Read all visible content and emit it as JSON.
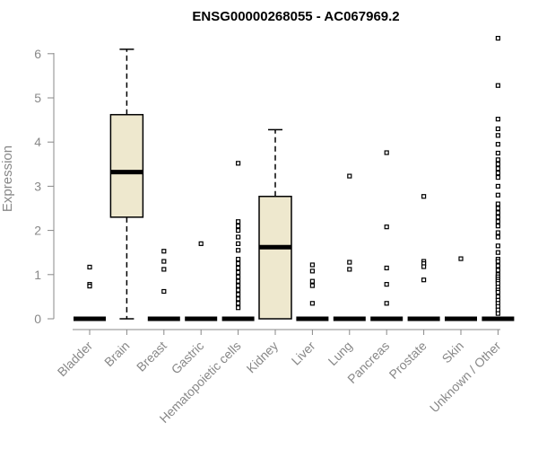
{
  "chart_data": {
    "type": "box",
    "title": "ENSG00000268055 - AC067969.2",
    "ylabel": "Expression",
    "xlabel": "",
    "ylim": [
      0,
      6.3
    ],
    "yticks": [
      0,
      1,
      2,
      3,
      4,
      5,
      6
    ],
    "box_color": "#EEE8CE",
    "categories": [
      "Bladder",
      "Brain",
      "Breast",
      "Gastric",
      "Hematopoietic cells",
      "Kidney",
      "Liver",
      "Lung",
      "Pancreas",
      "Prostate",
      "Skin",
      "Unknown / Other"
    ],
    "boxes": [
      {
        "q1": 0,
        "median": 0,
        "q3": 0,
        "whisker_low": 0,
        "whisker_high": 0,
        "outliers": [
          1.17,
          0.78,
          0.74
        ]
      },
      {
        "q1": 2.3,
        "median": 3.32,
        "q3": 4.62,
        "whisker_low": 0,
        "whisker_high": 6.1,
        "outliers": []
      },
      {
        "q1": 0,
        "median": 0,
        "q3": 0,
        "whisker_low": 0,
        "whisker_high": 0,
        "outliers": [
          1.53,
          1.3,
          1.12,
          0.62
        ]
      },
      {
        "q1": 0,
        "median": 0,
        "q3": 0,
        "whisker_low": 0,
        "whisker_high": 0,
        "outliers": [
          1.7
        ]
      },
      {
        "q1": 0,
        "median": 0,
        "q3": 0,
        "whisker_low": 0,
        "whisker_high": 0,
        "outliers": [
          3.52,
          2.2,
          2.1,
          2.0,
          1.85,
          1.7,
          1.55,
          1.35,
          1.25,
          1.15,
          1.05,
          0.95,
          0.85,
          0.75,
          0.65,
          0.55,
          0.45,
          0.35,
          0.25
        ]
      },
      {
        "q1": 0,
        "median": 1.62,
        "q3": 2.77,
        "whisker_low": 0,
        "whisker_high": 4.28,
        "outliers": []
      },
      {
        "q1": 0,
        "median": 0,
        "q3": 0,
        "whisker_low": 0,
        "whisker_high": 0,
        "outliers": [
          1.22,
          1.08,
          0.85,
          0.75,
          0.35
        ]
      },
      {
        "q1": 0,
        "median": 0,
        "q3": 0,
        "whisker_low": 0,
        "whisker_high": 0,
        "outliers": [
          3.23,
          1.28,
          1.12
        ]
      },
      {
        "q1": 0,
        "median": 0,
        "q3": 0,
        "whisker_low": 0,
        "whisker_high": 0,
        "outliers": [
          3.76,
          2.08,
          1.15,
          0.78,
          0.35
        ]
      },
      {
        "q1": 0,
        "median": 0,
        "q3": 0,
        "whisker_low": 0,
        "whisker_high": 0,
        "outliers": [
          2.77,
          1.3,
          1.25,
          1.18,
          0.88
        ]
      },
      {
        "q1": 0,
        "median": 0,
        "q3": 0,
        "whisker_low": 0,
        "whisker_high": 0,
        "outliers": [
          1.36
        ]
      },
      {
        "q1": 0,
        "median": 0,
        "q3": 0,
        "whisker_low": 0,
        "whisker_high": 0,
        "outliers": [
          6.35,
          5.28,
          4.52,
          4.3,
          4.15,
          3.95,
          3.75,
          3.6,
          3.5,
          3.4,
          3.3,
          3.2,
          3.0,
          2.8,
          2.6,
          2.5,
          2.4,
          2.3,
          2.2,
          2.1,
          1.95,
          1.85,
          1.65,
          1.5,
          1.35,
          1.3,
          1.2,
          1.1,
          1.0,
          0.95,
          0.9,
          0.85,
          0.8,
          0.72,
          0.65,
          0.6,
          0.5,
          0.42,
          0.35,
          0.28,
          0.2,
          0.12
        ]
      }
    ]
  }
}
